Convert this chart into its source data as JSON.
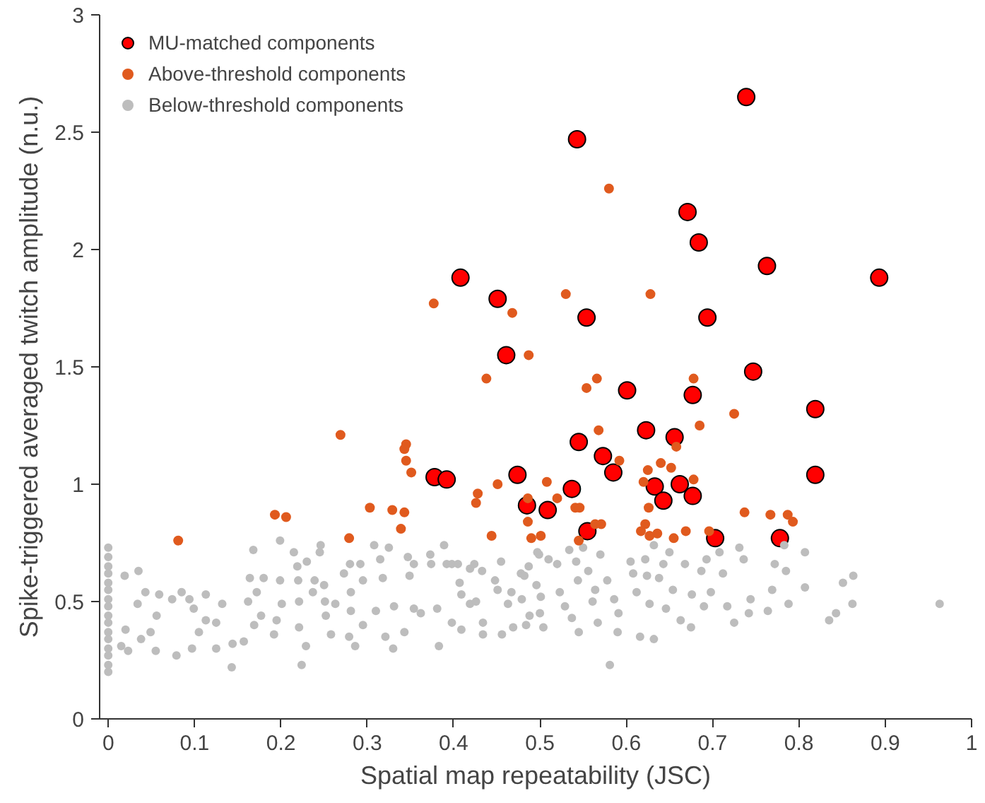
{
  "chart_data": {
    "type": "scatter",
    "xlabel": "Spatial map repeatability (JSC)",
    "ylabel": "Spike-triggered averaged twitch amplitude (n.u.)",
    "xlim": [
      -0.01,
      1
    ],
    "ylim": [
      0,
      3
    ],
    "xticks": [
      {
        "value": 0,
        "label": "0"
      },
      0.1,
      0.2,
      0.3,
      0.4,
      0.5,
      0.6,
      0.7,
      0.8,
      0.9,
      {
        "value": 1,
        "label": "1"
      }
    ],
    "yticks": [
      {
        "value": 0,
        "label": "0"
      },
      0.5,
      {
        "value": 1,
        "label": "1"
      },
      1.5,
      {
        "value": 2,
        "label": "2"
      },
      2.5,
      {
        "value": 3,
        "label": "3"
      }
    ],
    "grid": false,
    "legend": "top left",
    "marker": "circle",
    "series": [
      {
        "name": "MU-matched components",
        "color": "#ff0000",
        "x": [
          0.739,
          0.543,
          0.671,
          0.684,
          0.763,
          0.893,
          0.408,
          0.451,
          0.554,
          0.694,
          0.461,
          0.747,
          0.601,
          0.677,
          0.819,
          0.623,
          0.656,
          0.545,
          0.573,
          0.585,
          0.819,
          0.474,
          0.378,
          0.392,
          0.662,
          0.633,
          0.537,
          0.677,
          0.643,
          0.485,
          0.509,
          0.555,
          0.703,
          0.778
        ],
        "values": [
          2.65,
          2.47,
          2.16,
          2.03,
          1.93,
          1.88,
          1.88,
          1.79,
          1.71,
          1.71,
          1.55,
          1.48,
          1.4,
          1.38,
          1.32,
          1.23,
          1.2,
          1.18,
          1.12,
          1.05,
          1.04,
          1.04,
          1.03,
          1.02,
          1.0,
          0.99,
          0.98,
          0.95,
          0.93,
          0.91,
          0.89,
          0.8,
          0.77,
          0.77
        ]
      },
      {
        "name": "Above-threshold components",
        "color": "#e05a1e",
        "x": [
          0.58,
          0.53,
          0.628,
          0.468,
          0.487,
          0.377,
          0.566,
          0.554,
          0.678,
          0.438,
          0.725,
          0.685,
          0.568,
          0.658,
          0.592,
          0.64,
          0.652,
          0.625,
          0.678,
          0.508,
          0.62,
          0.52,
          0.486,
          0.541,
          0.546,
          0.626,
          0.737,
          0.767,
          0.787,
          0.793,
          0.486,
          0.564,
          0.571,
          0.622,
          0.617,
          0.627,
          0.636,
          0.655,
          0.669,
          0.696,
          0.49,
          0.501,
          0.545,
          0.081,
          0.193,
          0.206,
          0.269,
          0.279,
          0.303,
          0.329,
          0.343,
          0.339,
          0.345,
          0.343,
          0.345,
          0.351,
          0.428,
          0.426,
          0.451,
          0.444
        ],
        "values": [
          2.26,
          1.81,
          1.81,
          1.73,
          1.55,
          1.77,
          1.45,
          1.41,
          1.45,
          1.45,
          1.3,
          1.25,
          1.23,
          1.16,
          1.1,
          1.09,
          1.07,
          1.06,
          1.02,
          1.01,
          1.01,
          0.94,
          0.94,
          0.9,
          0.9,
          0.9,
          0.88,
          0.87,
          0.87,
          0.84,
          0.84,
          0.83,
          0.83,
          0.83,
          0.8,
          0.78,
          0.79,
          0.77,
          0.8,
          0.8,
          0.77,
          0.78,
          0.76,
          0.76,
          0.87,
          0.86,
          1.21,
          0.77,
          0.9,
          0.89,
          0.88,
          0.81,
          1.17,
          1.15,
          1.1,
          1.05,
          0.96,
          0.92,
          1.0,
          0.78
        ]
      },
      {
        "name": "Below-threshold components",
        "color": "#bdbdbd",
        "x": [
          0,
          0,
          0,
          0,
          0,
          0,
          0,
          0,
          0,
          0,
          0,
          0,
          0,
          0,
          0,
          0,
          0.019,
          0.035,
          0.043,
          0.034,
          0.02,
          0.015,
          0.023,
          0.038,
          0.049,
          0.059,
          0.056,
          0.055,
          0.074,
          0.079,
          0.085,
          0.094,
          0.099,
          0.113,
          0.113,
          0.105,
          0.097,
          0.125,
          0.132,
          0.125,
          0.143,
          0.144,
          0.157,
          0.162,
          0.168,
          0.164,
          0.172,
          0.177,
          0.169,
          0.18,
          0.192,
          0.199,
          0.199,
          0.201,
          0.195,
          0.215,
          0.219,
          0.22,
          0.221,
          0.221,
          0.229,
          0.224,
          0.23,
          0.237,
          0.239,
          0.246,
          0.245,
          0.25,
          0.251,
          0.252,
          0.258,
          0.263,
          0.273,
          0.28,
          0.281,
          0.281,
          0.279,
          0.286,
          0.292,
          0.295,
          0.295,
          0.308,
          0.315,
          0.31,
          0.318,
          0.321,
          0.325,
          0.33,
          0.331,
          0.343,
          0.347,
          0.354,
          0.349,
          0.354,
          0.362,
          0.373,
          0.374,
          0.381,
          0.383,
          0.389,
          0.392,
          0.398,
          0.398,
          0.405,
          0.407,
          0.409,
          0.409,
          0.419,
          0.419,
          0.424,
          0.426,
          0.433,
          0.434,
          0.434,
          0.448,
          0.451,
          0.455,
          0.456,
          0.463,
          0.467,
          0.469,
          0.478,
          0.484,
          0.487,
          0.497,
          0.5,
          0.499,
          0.51,
          0.482,
          0.496,
          0.479,
          0.501,
          0.488,
          0.504,
          0.52,
          0.523,
          0.529,
          0.534,
          0.542,
          0.544,
          0.537,
          0.545,
          0.55,
          0.556,
          0.561,
          0.564,
          0.567,
          0.57,
          0.578,
          0.581,
          0.586,
          0.591,
          0.59,
          0.605,
          0.608,
          0.612,
          0.616,
          0.622,
          0.624,
          0.627,
          0.632,
          0.632,
          0.638,
          0.643,
          0.646,
          0.65,
          0.654,
          0.663,
          0.668,
          0.676,
          0.675,
          0.687,
          0.69,
          0.693,
          0.698,
          0.708,
          0.712,
          0.717,
          0.725,
          0.731,
          0.736,
          0.742,
          0.744,
          0.764,
          0.769,
          0.772,
          0.783,
          0.785,
          0.788,
          0.807,
          0.807,
          0.835,
          0.843,
          0.851,
          0.862,
          0.863,
          0.963
        ],
        "values": [
          0.2,
          0.23,
          0.27,
          0.3,
          0.34,
          0.37,
          0.41,
          0.44,
          0.48,
          0.51,
          0.55,
          0.58,
          0.62,
          0.65,
          0.69,
          0.73,
          0.61,
          0.63,
          0.54,
          0.49,
          0.38,
          0.31,
          0.29,
          0.34,
          0.37,
          0.53,
          0.44,
          0.29,
          0.51,
          0.27,
          0.54,
          0.51,
          0.47,
          0.53,
          0.42,
          0.37,
          0.3,
          0.41,
          0.49,
          0.3,
          0.22,
          0.32,
          0.33,
          0.5,
          0.72,
          0.6,
          0.54,
          0.44,
          0.4,
          0.6,
          0.36,
          0.76,
          0.59,
          0.49,
          0.42,
          0.71,
          0.65,
          0.59,
          0.5,
          0.39,
          0.31,
          0.23,
          0.67,
          0.54,
          0.59,
          0.74,
          0.71,
          0.57,
          0.5,
          0.44,
          0.36,
          0.49,
          0.62,
          0.66,
          0.54,
          0.46,
          0.35,
          0.31,
          0.66,
          0.59,
          0.4,
          0.74,
          0.68,
          0.46,
          0.6,
          0.35,
          0.73,
          0.3,
          0.48,
          0.37,
          0.69,
          0.66,
          0.61,
          0.47,
          0.45,
          0.7,
          0.66,
          0.47,
          0.31,
          0.74,
          0.66,
          0.66,
          0.41,
          0.66,
          0.58,
          0.53,
          0.38,
          0.64,
          0.49,
          0.66,
          0.5,
          0.63,
          0.41,
          0.36,
          0.59,
          0.55,
          0.67,
          0.36,
          0.49,
          0.54,
          0.39,
          0.62,
          0.4,
          0.65,
          0.71,
          0.45,
          0.7,
          0.68,
          0.61,
          0.57,
          0.51,
          0.52,
          0.44,
          0.39,
          0.66,
          0.54,
          0.48,
          0.72,
          0.67,
          0.59,
          0.43,
          0.37,
          0.73,
          0.63,
          0.5,
          0.55,
          0.41,
          0.7,
          0.59,
          0.23,
          0.51,
          0.45,
          0.37,
          0.67,
          0.62,
          0.54,
          0.35,
          0.68,
          0.61,
          0.49,
          0.74,
          0.34,
          0.6,
          0.66,
          0.47,
          0.71,
          0.55,
          0.42,
          0.66,
          0.53,
          0.39,
          0.63,
          0.48,
          0.68,
          0.54,
          0.71,
          0.62,
          0.48,
          0.41,
          0.73,
          0.68,
          0.45,
          0.51,
          0.46,
          0.55,
          0.66,
          0.74,
          0.63,
          0.49,
          0.71,
          0.56,
          0.42,
          0.45,
          0.58,
          0.49,
          0.61,
          0.49
        ]
      }
    ]
  }
}
